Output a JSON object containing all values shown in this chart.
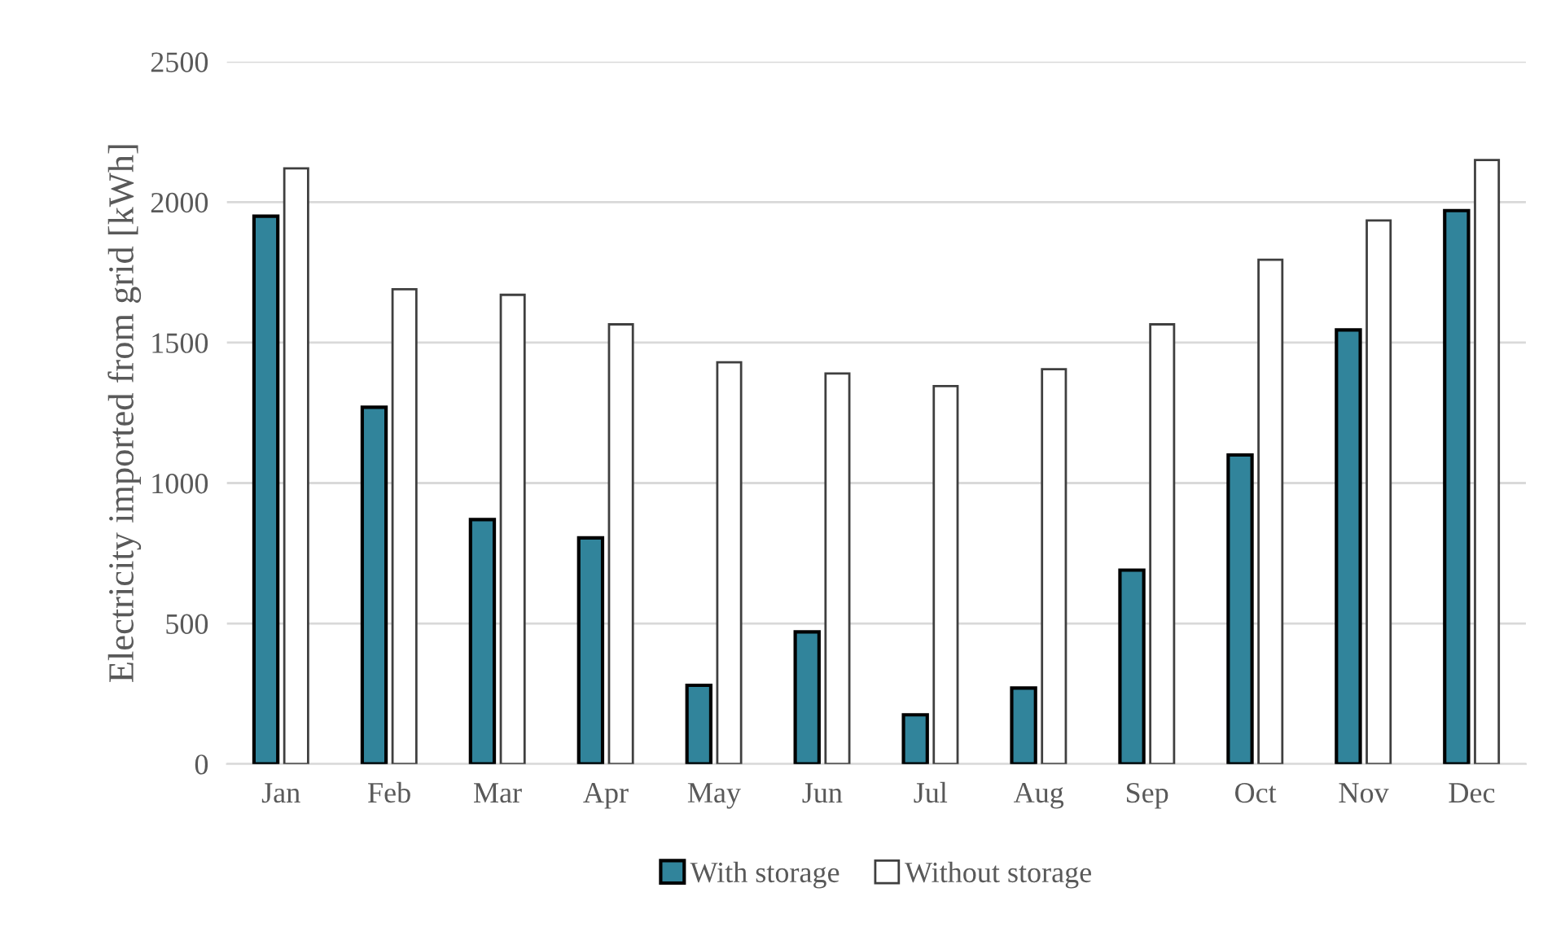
{
  "chart_data": {
    "type": "bar",
    "ylabel": "Electricity imported from grid [kWh]",
    "categories": [
      "Jan",
      "Feb",
      "Mar",
      "Apr",
      "May",
      "Jun",
      "Jul",
      "Aug",
      "Sep",
      "Oct",
      "Nov",
      "Dec"
    ],
    "series": [
      {
        "name": "With storage",
        "color": "#31849b",
        "values": [
          1950,
          1270,
          870,
          805,
          280,
          470,
          175,
          270,
          690,
          1100,
          1545,
          1970
        ]
      },
      {
        "name": "Without storage",
        "color": "#ffffff",
        "values": [
          2120,
          1690,
          1670,
          1565,
          1430,
          1390,
          1345,
          1405,
          1565,
          1795,
          1935,
          2150
        ]
      }
    ],
    "ylim": [
      0,
      2500
    ],
    "yticks": [
      0,
      500,
      1000,
      1500,
      2000,
      2500
    ],
    "grid": "y",
    "legend": "bottom"
  }
}
